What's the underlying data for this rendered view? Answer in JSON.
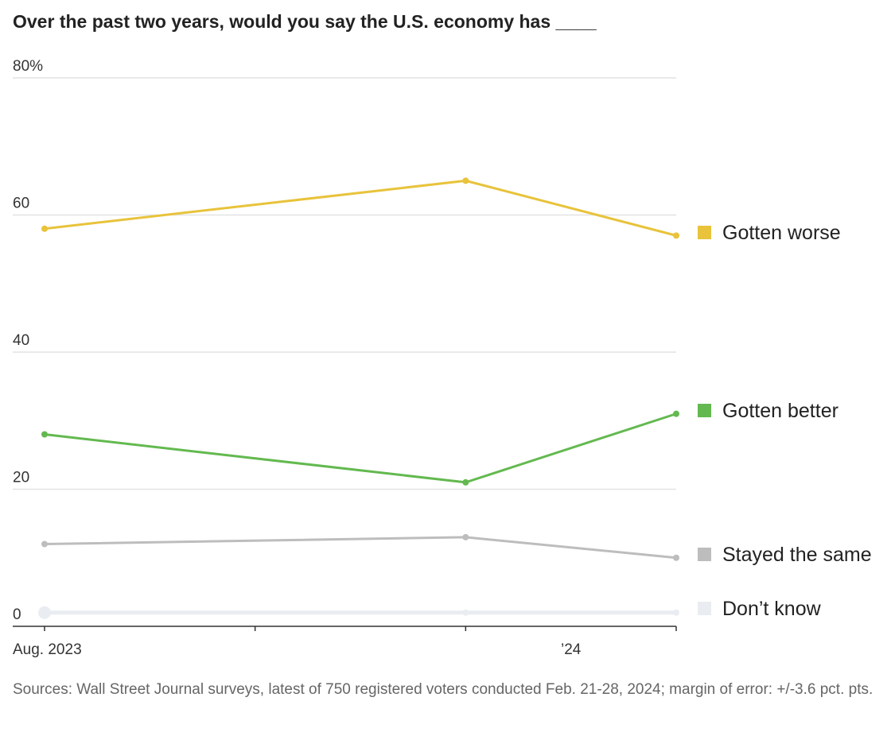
{
  "title": "Over the past two years, would you say the U.S. economy has ____",
  "source": "Sources: Wall Street Journal surveys, latest of 750 registered voters conducted Feb. 21-28, 2024; margin of error: +/-3.6 pct. pts.",
  "chart_data": {
    "type": "line",
    "title": "Over the past two years, would you say the U.S. economy has ____",
    "x": [
      "2023-08",
      "2023-12",
      "2024-02"
    ],
    "xlim": [
      "2023-08",
      "2024-02"
    ],
    "x_tick_labels": [
      "Aug. 2023",
      "’24"
    ],
    "ylim": [
      0,
      80
    ],
    "y_ticks": [
      0,
      20,
      40,
      60,
      80
    ],
    "y_tick_labels": [
      "0",
      "20",
      "40",
      "60",
      "80%"
    ],
    "grid": true,
    "legend": "right, labels at line ends",
    "series": [
      {
        "name": "Gotten worse",
        "color": "#e8c33b",
        "values": [
          58,
          65,
          57
        ]
      },
      {
        "name": "Gotten better",
        "color": "#63b94f",
        "values": [
          28,
          21,
          31
        ]
      },
      {
        "name": "Stayed the same",
        "color": "#bdbdbd",
        "values": [
          12,
          13,
          10
        ]
      },
      {
        "name": "Don’t know",
        "color": "#e9edf1",
        "values": [
          2,
          2,
          2
        ]
      }
    ]
  }
}
